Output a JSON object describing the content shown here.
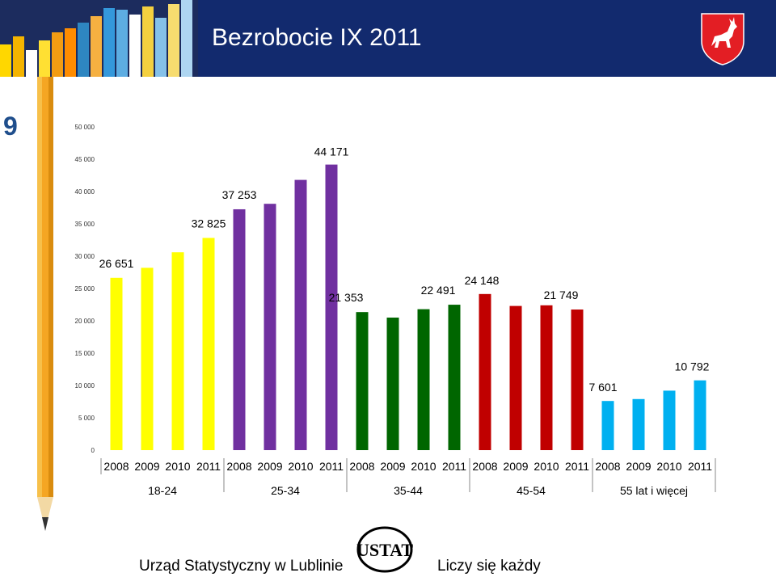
{
  "slide": {
    "title": "Bezrobocie IX 2011",
    "number": "9"
  },
  "footer": {
    "left_text": "Urząd Statystyczny w Lublinie",
    "right_text": "Liczy się każdy",
    "logo_text": "USTAT"
  },
  "colors": {
    "header_bg": "#122a6e",
    "yellow": "#ffff00",
    "purple": "#7030a0",
    "green": "#006600",
    "red": "#c00000",
    "blue": "#00b0f0"
  },
  "chart_data": {
    "type": "bar",
    "ylim": [
      0,
      50000
    ],
    "y_ticks": [
      "0",
      "5 000",
      "10 000",
      "15 000",
      "20 000",
      "25 000",
      "30 000",
      "35 000",
      "40 000",
      "45 000",
      "50 000"
    ],
    "y_tick_values": [
      0,
      5000,
      10000,
      15000,
      20000,
      25000,
      30000,
      35000,
      40000,
      45000,
      50000
    ],
    "groups": [
      {
        "label": "18-24",
        "color": "#ffff00",
        "categories": [
          "2008",
          "2009",
          "2010",
          "2011"
        ],
        "values": [
          26651,
          28200,
          30600,
          32825
        ]
      },
      {
        "label": "25-34",
        "color": "#7030a0",
        "categories": [
          "2008",
          "2009",
          "2010",
          "2011"
        ],
        "values": [
          37253,
          38100,
          41800,
          44171
        ]
      },
      {
        "label": "35-44",
        "color": "#006600",
        "categories": [
          "2008",
          "2009",
          "2010",
          "2011"
        ],
        "values": [
          21353,
          20500,
          21800,
          22491
        ]
      },
      {
        "label": "45-54",
        "color": "#c00000",
        "categories": [
          "2008",
          "2009",
          "2010",
          "2011"
        ],
        "values": [
          24148,
          22300,
          22400,
          21749
        ]
      },
      {
        "label": "55 lat i więcej",
        "color": "#00b0f0",
        "categories": [
          "2008",
          "2009",
          "2010",
          "2011"
        ],
        "values": [
          7601,
          7900,
          9200,
          10792
        ]
      }
    ],
    "data_labels": [
      {
        "group": 0,
        "bar": 0,
        "text": "26 651"
      },
      {
        "group": 0,
        "bar": 3,
        "text": "32 825"
      },
      {
        "group": 1,
        "bar": 0,
        "text": "37 253"
      },
      {
        "group": 1,
        "bar": 3,
        "text": "44 171"
      },
      {
        "group": 2,
        "bar": 0,
        "text": "21 353"
      },
      {
        "group": 2,
        "bar": 3,
        "text": "22 491"
      },
      {
        "group": 3,
        "bar": 0,
        "text": "24 148"
      },
      {
        "group": 3,
        "bar": 3,
        "text": "21 749"
      },
      {
        "group": 4,
        "bar": 0,
        "text": "7 601"
      },
      {
        "group": 4,
        "bar": 3,
        "text": "10 792"
      }
    ],
    "grid": false,
    "legend": "none"
  }
}
